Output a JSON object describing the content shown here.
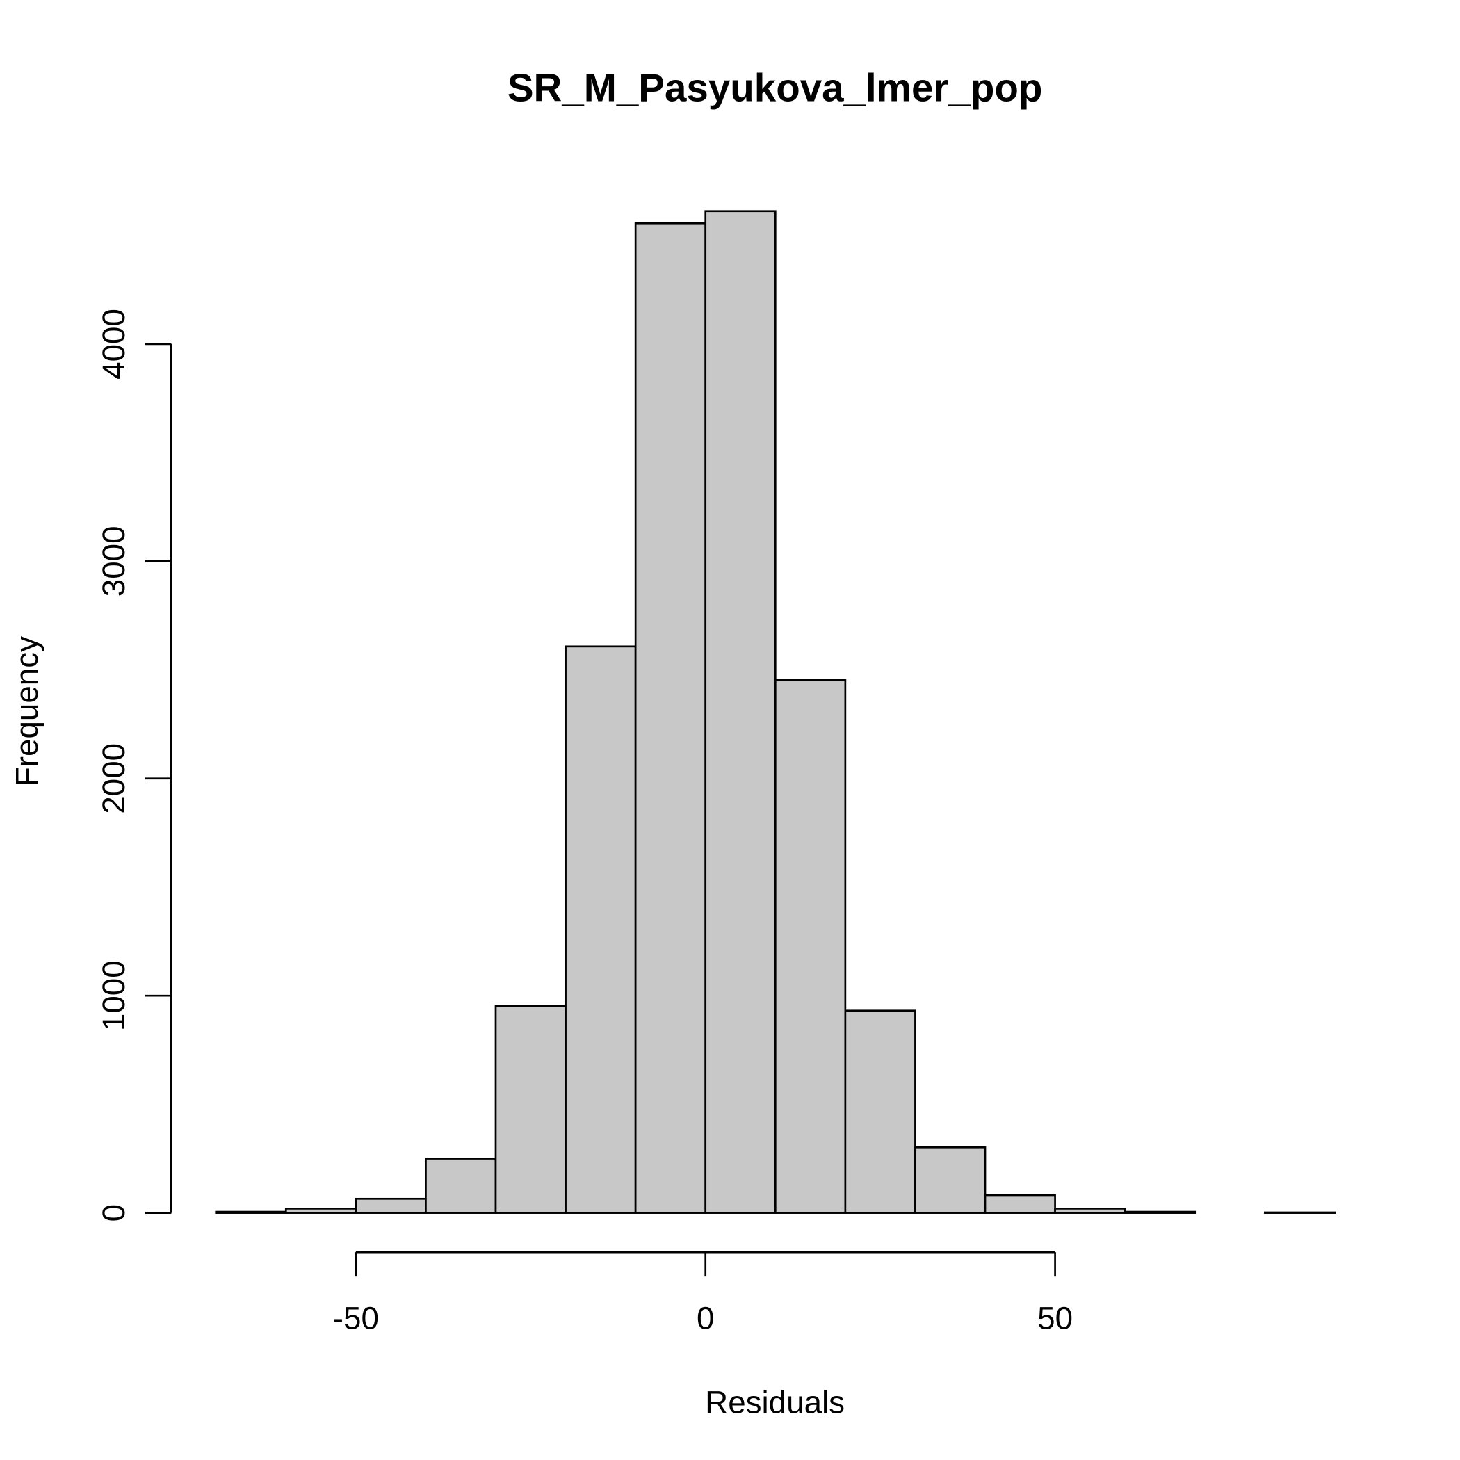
{
  "chart_data": {
    "type": "histogram",
    "title": "SR_M_Pasyukova_lmer_pop",
    "x_label": "Residuals",
    "y_label": "Frequency",
    "bins": [
      -70,
      -60,
      -50,
      -40,
      -30,
      -20,
      -10,
      0,
      10,
      20,
      30,
      40,
      50,
      60,
      70,
      80,
      90
    ],
    "values": [
      5,
      20,
      65,
      250,
      953,
      2608,
      4556,
      4612,
      2453,
      931,
      302,
      82,
      20,
      5,
      0,
      2
    ],
    "color": "#c8c8c8",
    "xlim": [
      -76.4,
      96.4
    ],
    "xticks": [
      -50,
      0,
      50
    ],
    "ylim": [
      0,
      4800
    ],
    "yticks": [
      0,
      1000,
      2000,
      3000,
      4000
    ]
  }
}
